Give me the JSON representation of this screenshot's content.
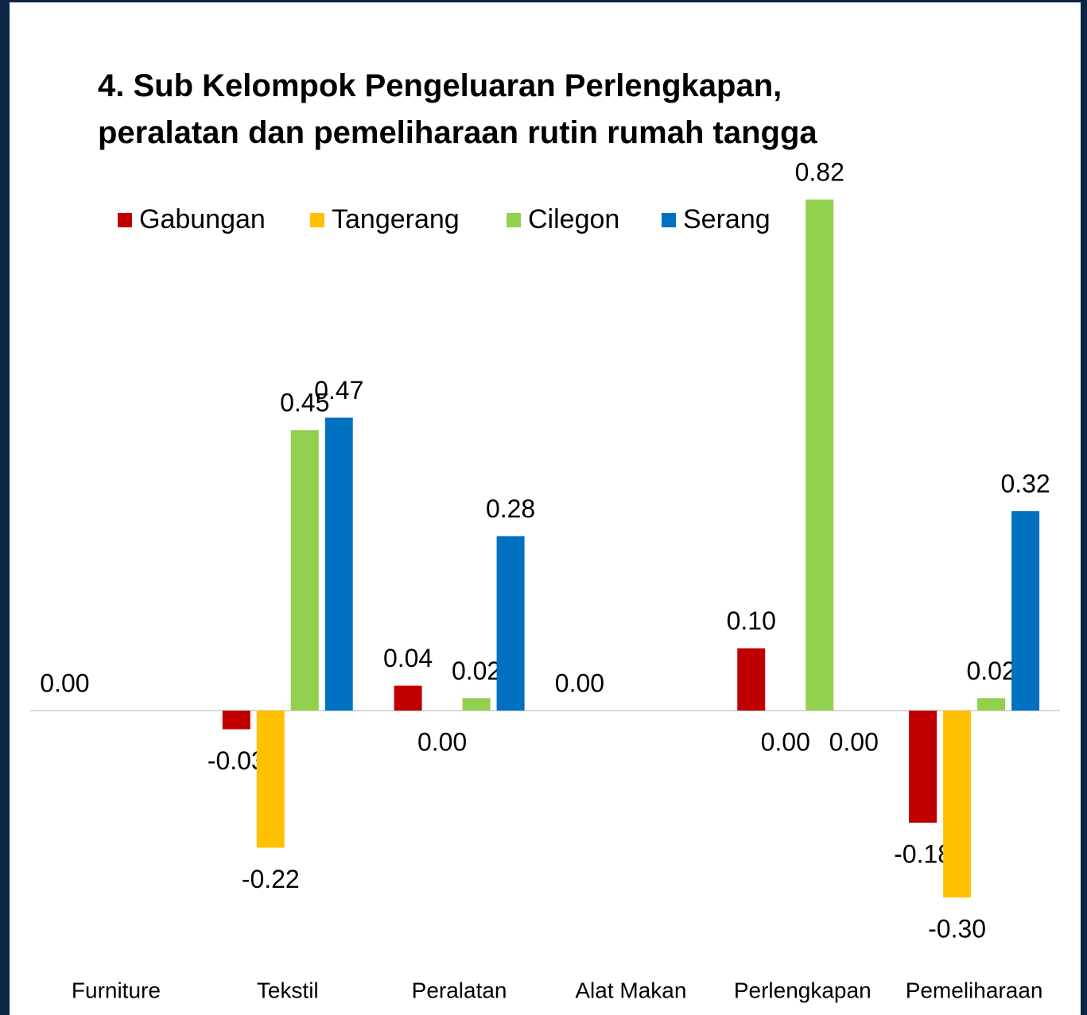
{
  "chart_data": {
    "type": "bar",
    "title": [
      "4. Sub Kelompok Pengeluaran Perlengkapan,",
      "peralatan dan pemeliharaan rutin rumah tangga"
    ],
    "categories": [
      "Furniture",
      "Tekstil",
      "Peralatan",
      "Alat Makan",
      "Perlengkapan",
      "Pemeliharaan"
    ],
    "series": [
      {
        "name": "Gabungan",
        "color": "#c00000",
        "values": [
          0,
          -0.03,
          0.04,
          0,
          0.1,
          -0.18
        ],
        "value_labels": [
          "0.00",
          "-0.03",
          "0.04",
          "0.00",
          "0.10",
          "-0.18"
        ]
      },
      {
        "name": "Tangerang",
        "color": "#ffc000",
        "values": [
          null,
          -0.22,
          0,
          null,
          0,
          -0.3
        ],
        "value_labels": [
          null,
          "-0.22",
          "0.00",
          null,
          "0.00",
          "-0.30"
        ]
      },
      {
        "name": "Cilegon",
        "color": "#92d050",
        "values": [
          null,
          0.45,
          0.02,
          null,
          0.82,
          0.02
        ],
        "value_labels": [
          null,
          "0.45",
          "0.02",
          null,
          "0.82",
          "0.02"
        ]
      },
      {
        "name": "Serang",
        "color": "#0070c0",
        "values": [
          null,
          0.47,
          0.28,
          null,
          0,
          0.32
        ],
        "value_labels": [
          null,
          "0.47",
          "0.28",
          null,
          "0.00",
          "0.32"
        ]
      }
    ],
    "ylim": [
      -0.35,
      0.85
    ],
    "legend": "top"
  }
}
